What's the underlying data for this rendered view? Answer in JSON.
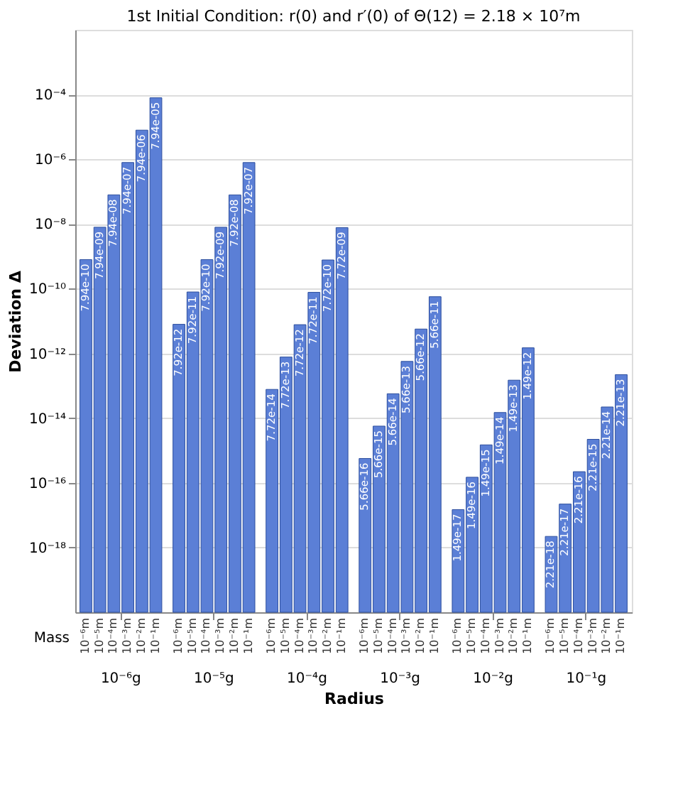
{
  "chart_data": {
    "type": "bar",
    "title": "1st Initial Condition: r(0) and r′(0) of Θ(12) = 2.18 × 10⁷m",
    "xlabel": "Radius",
    "ylabel": "Deviation Δ",
    "legend_title": "Mass",
    "legend": false,
    "categories": [
      "10⁻⁶g",
      "10⁻⁵g",
      "10⁻⁴g",
      "10⁻³g",
      "10⁻²g",
      "10⁻¹g"
    ],
    "series": [
      {
        "name": "10⁻⁶m",
        "color": "#5b7fd6",
        "values": [
          7.94e-10,
          7.92e-12,
          7.72e-14,
          5.66e-16,
          1.49e-17,
          2.21e-18
        ]
      },
      {
        "name": "10⁻⁵m",
        "color": "#5b7fd6",
        "values": [
          7.94e-09,
          7.92e-11,
          7.72e-13,
          5.66e-15,
          1.49e-16,
          2.21e-17
        ]
      },
      {
        "name": "10⁻⁴m",
        "color": "#5b7fd6",
        "values": [
          7.94e-08,
          7.92e-10,
          7.72e-12,
          5.66e-14,
          1.49e-15,
          2.21e-16
        ]
      },
      {
        "name": "10⁻³m",
        "color": "#5b7fd6",
        "values": [
          7.94e-07,
          7.92e-09,
          7.72e-11,
          5.66e-13,
          1.49e-14,
          2.21e-15
        ]
      },
      {
        "name": "10⁻²m",
        "color": "#5b7fd6",
        "values": [
          7.94e-06,
          7.92e-08,
          7.72e-10,
          5.66e-12,
          1.49e-13,
          2.21e-14
        ]
      },
      {
        "name": "10⁻¹m",
        "color": "#5b7fd6",
        "values": [
          7.94e-05,
          7.92e-07,
          7.72e-09,
          5.66e-11,
          1.49e-12,
          2.21e-13
        ]
      }
    ],
    "log": true,
    "grid": "y",
    "data_labels": true,
    "ylim": [
      1e-20,
      0.01
    ],
    "yticks": [
      {
        "value": 1e-18,
        "label": "10⁻¹⁸"
      },
      {
        "value": 1e-16,
        "label": "10⁻¹⁶"
      },
      {
        "value": 1e-14,
        "label": "10⁻¹⁴"
      },
      {
        "value": 1e-12,
        "label": "10⁻¹²"
      },
      {
        "value": 1e-10,
        "label": "10⁻¹⁰"
      },
      {
        "value": 1e-08,
        "label": "10⁻⁸"
      },
      {
        "value": 1e-06,
        "label": "10⁻⁶"
      },
      {
        "value": 0.0001,
        "label": "10⁻⁴"
      }
    ]
  }
}
